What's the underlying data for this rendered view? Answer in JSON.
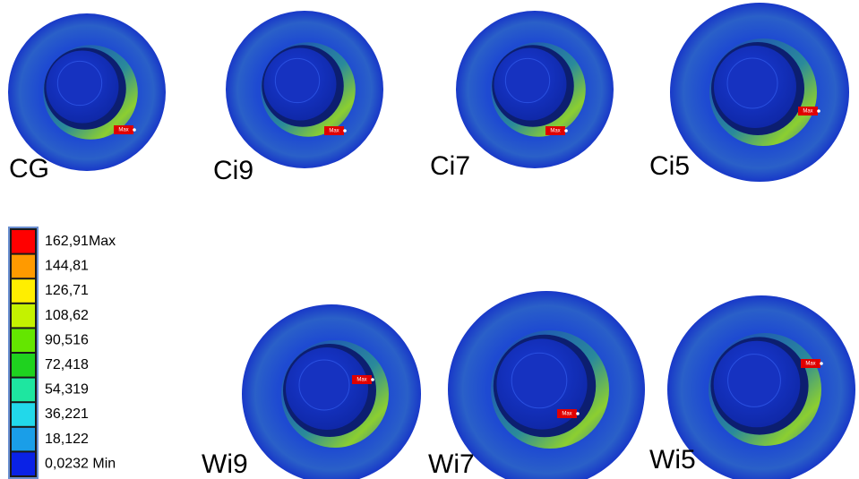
{
  "panels": [
    {
      "label": "CG",
      "tag": "Max"
    },
    {
      "label": "Ci9",
      "tag": "Max"
    },
    {
      "label": "Ci7",
      "tag": "Max"
    },
    {
      "label": "Ci5",
      "tag": "Max"
    },
    {
      "label": "Wi9",
      "tag": "Max"
    },
    {
      "label": "Wi7",
      "tag": "Max"
    },
    {
      "label": "Wi5",
      "tag": "Max"
    }
  ],
  "legend": {
    "entries": [
      {
        "label": "162,91Max",
        "color": "#ff0000"
      },
      {
        "label": "144,81",
        "color": "#ff9a00"
      },
      {
        "label": "126,71",
        "color": "#ffee00"
      },
      {
        "label": "108,62",
        "color": "#c4f200"
      },
      {
        "label": "90,516",
        "color": "#64e600"
      },
      {
        "label": "72,418",
        "color": "#1fd21f"
      },
      {
        "label": "54,319",
        "color": "#1ee6a0"
      },
      {
        "label": "36,221",
        "color": "#22d8ea"
      },
      {
        "label": "18,122",
        "color": "#1a9ee8"
      },
      {
        "label": "0,0232 Min",
        "color": "#0a22e6"
      }
    ]
  }
}
